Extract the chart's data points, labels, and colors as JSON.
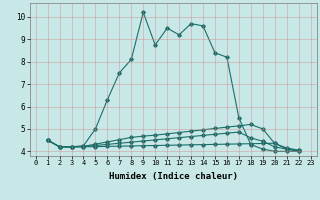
{
  "xlabel": "Humidex (Indice chaleur)",
  "background_color": "#c8e8e8",
  "grid_color": "#d08080",
  "line_color": "#1a6e6a",
  "xlim": [
    -0.5,
    23.5
  ],
  "ylim": [
    3.8,
    10.6
  ],
  "xticks": [
    0,
    1,
    2,
    3,
    4,
    5,
    6,
    7,
    8,
    9,
    10,
    11,
    12,
    13,
    14,
    15,
    16,
    17,
    18,
    19,
    20,
    21,
    22,
    23
  ],
  "yticks": [
    4,
    5,
    6,
    7,
    8,
    9,
    10
  ],
  "lines": [
    {
      "x": [
        1,
        2,
        3,
        4,
        5,
        6,
        7,
        8,
        9,
        10,
        11,
        12,
        13,
        14,
        15,
        16,
        17,
        18,
        19,
        20,
        21,
        22
      ],
      "y": [
        4.5,
        4.2,
        4.2,
        4.25,
        5.0,
        6.3,
        7.5,
        8.1,
        10.2,
        8.75,
        9.5,
        9.2,
        9.7,
        9.6,
        8.4,
        8.2,
        5.5,
        4.3,
        4.1,
        4.0,
        4.0,
        4.0
      ]
    },
    {
      "x": [
        1,
        2,
        3,
        4,
        5,
        6,
        7,
        8,
        9,
        10,
        11,
        12,
        13,
        14,
        15,
        16,
        17,
        18,
        19,
        20,
        21,
        22
      ],
      "y": [
        4.5,
        4.2,
        4.2,
        4.22,
        4.32,
        4.42,
        4.52,
        4.62,
        4.68,
        4.72,
        4.78,
        4.84,
        4.9,
        4.96,
        5.02,
        5.08,
        5.14,
        5.2,
        5.0,
        4.35,
        4.15,
        4.05
      ]
    },
    {
      "x": [
        1,
        2,
        3,
        4,
        5,
        6,
        7,
        8,
        9,
        10,
        11,
        12,
        13,
        14,
        15,
        16,
        17,
        18,
        19,
        20,
        21,
        22
      ],
      "y": [
        4.5,
        4.2,
        4.2,
        4.21,
        4.26,
        4.31,
        4.36,
        4.41,
        4.46,
        4.51,
        4.56,
        4.61,
        4.66,
        4.71,
        4.76,
        4.81,
        4.86,
        4.6,
        4.45,
        4.2,
        4.1,
        4.05
      ]
    },
    {
      "x": [
        1,
        2,
        3,
        4,
        5,
        6,
        7,
        8,
        9,
        10,
        11,
        12,
        13,
        14,
        15,
        16,
        17,
        18,
        19,
        20,
        21,
        22
      ],
      "y": [
        4.5,
        4.2,
        4.2,
        4.2,
        4.21,
        4.22,
        4.23,
        4.24,
        4.25,
        4.26,
        4.27,
        4.28,
        4.29,
        4.3,
        4.31,
        4.32,
        4.33,
        4.34,
        4.35,
        4.36,
        4.1,
        4.0
      ]
    }
  ],
  "xlabel_fontsize": 6.5,
  "tick_fontsize": 5.0
}
